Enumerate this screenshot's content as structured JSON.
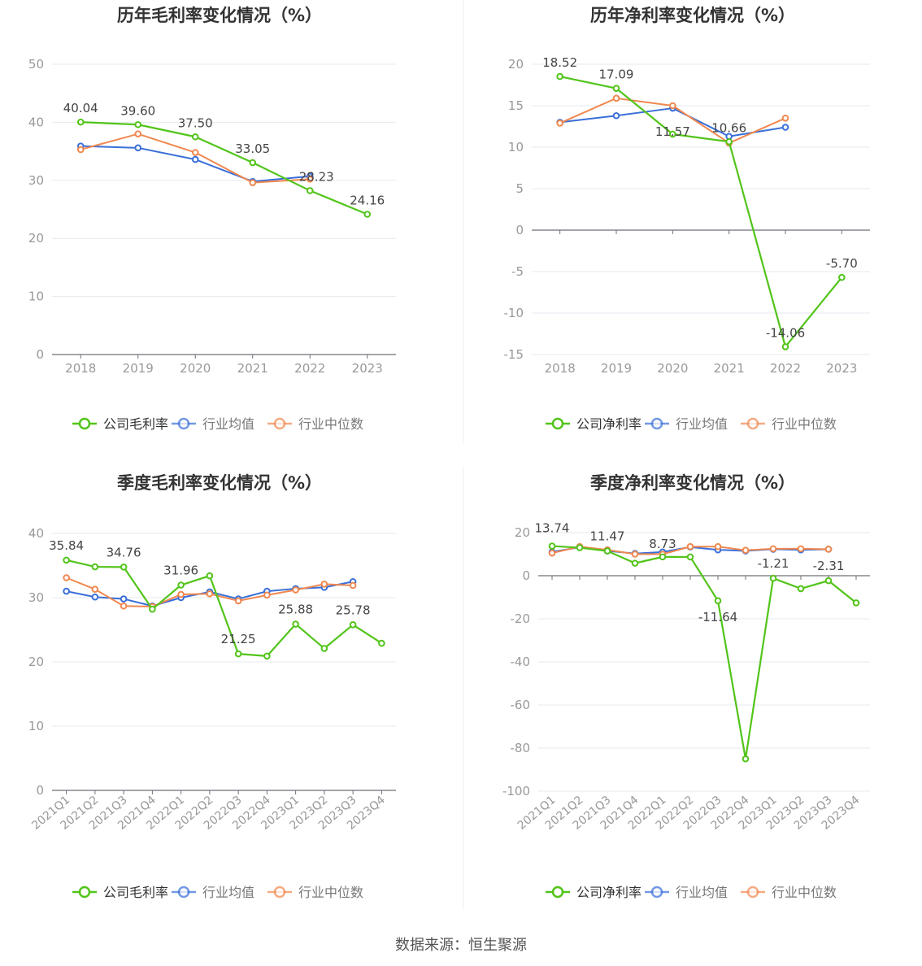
{
  "colors": {
    "company": "#52c41a",
    "industry_avg": "#3a6fd8",
    "industry_median": "#f08850",
    "grid": "#e6e8ef",
    "axis": "#6e7079",
    "tick_text": "#999999",
    "title": "#333333",
    "label": "#444444"
  },
  "legend_labels": {
    "industry_avg": "行业均值",
    "industry_median": "行业中位数"
  },
  "footer": "数据来源：恒生聚源",
  "chart_data": [
    {
      "type": "line",
      "title": "历年毛利率变化情况（%）",
      "categories": [
        "2018",
        "2019",
        "2020",
        "2021",
        "2022",
        "2023"
      ],
      "ylim": [
        0,
        50
      ],
      "yticks": [
        0,
        10,
        20,
        30,
        40,
        50
      ],
      "grid": true,
      "legend_position": "bottom",
      "series": [
        {
          "name": "公司毛利率",
          "key": "company",
          "values": [
            40.04,
            39.6,
            37.5,
            33.05,
            28.23,
            24.16
          ]
        },
        {
          "name": "行业均值",
          "key": "industry_avg",
          "values": [
            35.9,
            35.6,
            33.6,
            29.8,
            30.7,
            null
          ]
        },
        {
          "name": "行业中位数",
          "key": "industry_median",
          "values": [
            35.3,
            38.0,
            34.8,
            29.6,
            30.2,
            null
          ]
        }
      ],
      "labels": [
        "40.04",
        "39.60",
        "37.50",
        "33.05",
        "28.23",
        "24.16"
      ]
    },
    {
      "type": "line",
      "title": "历年净利率变化情况（%）",
      "categories": [
        "2018",
        "2019",
        "2020",
        "2021",
        "2022",
        "2023"
      ],
      "ylim": [
        -15,
        20
      ],
      "yticks": [
        -15,
        -10,
        -5,
        0,
        5,
        10,
        15,
        20
      ],
      "grid": true,
      "legend_position": "bottom",
      "series": [
        {
          "name": "公司净利率",
          "key": "company",
          "values": [
            18.52,
            17.09,
            11.57,
            10.66,
            -14.06,
            -5.7
          ]
        },
        {
          "name": "行业均值",
          "key": "industry_avg",
          "values": [
            13.0,
            13.8,
            14.7,
            11.3,
            12.4,
            null
          ]
        },
        {
          "name": "行业中位数",
          "key": "industry_median",
          "values": [
            12.9,
            15.9,
            15.0,
            10.5,
            13.5,
            null
          ]
        }
      ],
      "labels": [
        "18.52",
        "17.09",
        "11.57",
        "10.66",
        "-14.06",
        "-5.70"
      ]
    },
    {
      "type": "line",
      "title": "季度毛利率变化情况（%）",
      "categories": [
        "2021Q1",
        "2021Q2",
        "2021Q3",
        "2021Q4",
        "2022Q1",
        "2022Q2",
        "2022Q3",
        "2022Q4",
        "2023Q1",
        "2023Q2",
        "2023Q3",
        "2023Q4"
      ],
      "ylim": [
        0,
        40
      ],
      "yticks": [
        0,
        10,
        20,
        30,
        40
      ],
      "grid": true,
      "legend_position": "bottom",
      "series": [
        {
          "name": "公司毛利率",
          "key": "company",
          "values": [
            35.84,
            34.8,
            34.76,
            28.2,
            31.96,
            33.4,
            21.25,
            20.9,
            25.88,
            22.1,
            25.78,
            22.9
          ]
        },
        {
          "name": "行业均值",
          "key": "industry_avg",
          "values": [
            31.0,
            30.1,
            29.8,
            28.7,
            30.0,
            30.9,
            29.8,
            31.0,
            31.4,
            31.6,
            32.5,
            null
          ]
        },
        {
          "name": "行业中位数",
          "key": "industry_median",
          "values": [
            33.1,
            31.3,
            28.7,
            28.6,
            30.5,
            30.6,
            29.5,
            30.4,
            31.2,
            32.1,
            31.9,
            null
          ]
        }
      ],
      "labels": [
        "35.84",
        "",
        "34.76",
        "",
        "31.96",
        "",
        "21.25",
        "",
        "25.88",
        "",
        "25.78",
        ""
      ]
    },
    {
      "type": "line",
      "title": "季度净利率变化情况（%）",
      "categories": [
        "2021Q1",
        "2021Q2",
        "2021Q3",
        "2021Q4",
        "2022Q1",
        "2022Q2",
        "2022Q3",
        "2022Q4",
        "2023Q1",
        "2023Q2",
        "2023Q3",
        "2023Q4"
      ],
      "ylim": [
        -100,
        20
      ],
      "yticks": [
        -100,
        -80,
        -60,
        -40,
        -20,
        0,
        20
      ],
      "grid": true,
      "legend_position": "bottom",
      "series": [
        {
          "name": "公司净利率",
          "key": "company",
          "values": [
            13.74,
            13.0,
            11.47,
            5.8,
            8.73,
            8.7,
            -11.64,
            -85.0,
            -1.21,
            -6.0,
            -2.31,
            -12.6
          ]
        },
        {
          "name": "行业均值",
          "key": "industry_avg",
          "values": [
            11.0,
            13.2,
            11.5,
            10.3,
            11.0,
            13.3,
            12.0,
            11.5,
            12.3,
            12.0,
            12.3,
            null
          ]
        },
        {
          "name": "行业中位数",
          "key": "industry_median",
          "values": [
            10.5,
            13.5,
            12.0,
            10.0,
            10.0,
            13.5,
            13.5,
            11.8,
            12.5,
            12.5,
            12.3,
            null
          ]
        }
      ],
      "labels": [
        "13.74",
        "",
        "11.47",
        "",
        "8.73",
        "",
        "-11.64",
        "",
        "-1.21",
        "",
        "-2.31",
        ""
      ]
    }
  ]
}
